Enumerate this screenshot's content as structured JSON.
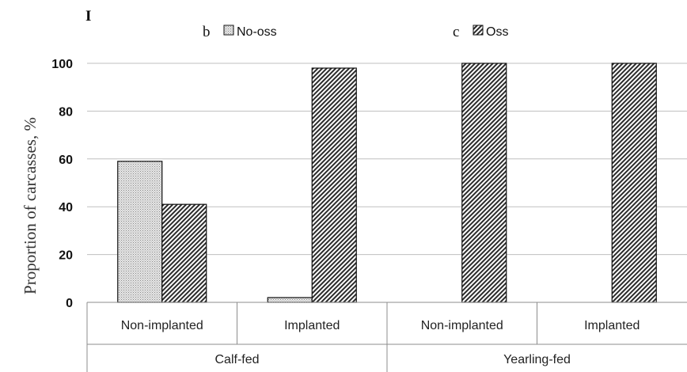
{
  "chart_data": {
    "type": "bar",
    "panel_label": "I",
    "ylabel": "Proportion of carcasses, %",
    "xlabel": "",
    "ylim": [
      0,
      100
    ],
    "yticks": [
      0,
      20,
      40,
      60,
      80,
      100
    ],
    "grid": true,
    "legend_placement": "top",
    "categories": [
      "Non-implanted",
      "Implanted",
      "Non-implanted",
      "Implanted"
    ],
    "groups": [
      {
        "label": "Calf-fed",
        "categories": [
          "Non-implanted",
          "Implanted"
        ]
      },
      {
        "label": "Yearling-fed",
        "categories": [
          "Non-implanted",
          "Implanted"
        ]
      }
    ],
    "series": [
      {
        "name": "No-oss",
        "values": [
          59,
          2,
          0,
          0
        ],
        "color": "#d9d9d9",
        "pattern": "fine-dots"
      },
      {
        "name": "Oss",
        "values": [
          41,
          98,
          100,
          100
        ],
        "color": "#a6a6a6",
        "pattern": "diagonal-stripes"
      }
    ],
    "legend": [
      {
        "marker": "b",
        "name": "No-oss"
      },
      {
        "marker": "c",
        "name": "Oss"
      }
    ]
  }
}
